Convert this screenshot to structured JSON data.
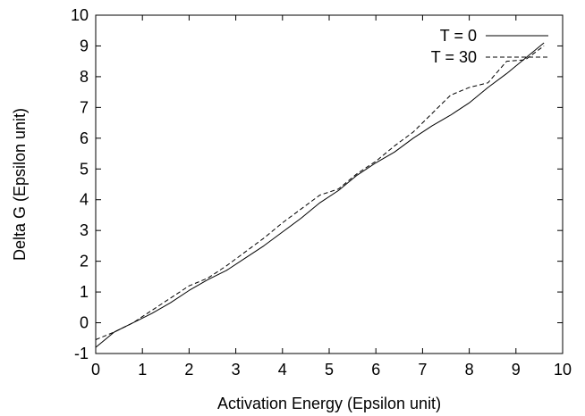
{
  "chart_data": {
    "type": "line",
    "xlabel": "Activation Energy (Epsilon unit)",
    "ylabel": "Delta G (Epsilon unit)",
    "xlim": [
      0,
      10
    ],
    "ylim": [
      -1,
      10
    ],
    "xticks": [
      0,
      1,
      2,
      3,
      4,
      5,
      6,
      7,
      8,
      9,
      10
    ],
    "yticks": [
      -1,
      0,
      1,
      2,
      3,
      4,
      5,
      6,
      7,
      8,
      9,
      10
    ],
    "grid": false,
    "legend_position": "top-right",
    "series": [
      {
        "name": "T = 0",
        "line_style": "solid",
        "color": "#000000",
        "x": [
          0.0,
          0.4,
          0.8,
          1.2,
          1.6,
          2.0,
          2.4,
          2.8,
          3.2,
          3.6,
          4.0,
          4.4,
          4.8,
          5.2,
          5.6,
          6.0,
          6.4,
          6.8,
          7.2,
          7.6,
          8.0,
          8.4,
          8.8,
          9.2,
          9.6
        ],
        "y": [
          -0.8,
          -0.3,
          0.0,
          0.3,
          0.65,
          1.05,
          1.4,
          1.7,
          2.1,
          2.5,
          2.95,
          3.4,
          3.9,
          4.3,
          4.8,
          5.2,
          5.55,
          6.0,
          6.4,
          6.75,
          7.15,
          7.65,
          8.1,
          8.6,
          9.1
        ]
      },
      {
        "name": "T = 30",
        "line_style": "dashed",
        "color": "#000000",
        "x": [
          0.0,
          0.4,
          0.8,
          1.2,
          1.6,
          2.0,
          2.4,
          2.8,
          3.2,
          3.6,
          4.0,
          4.4,
          4.8,
          5.2,
          5.6,
          6.0,
          6.4,
          6.8,
          7.2,
          7.6,
          8.0,
          8.4,
          8.8,
          9.2,
          9.6
        ],
        "y": [
          -0.55,
          -0.3,
          0.0,
          0.4,
          0.8,
          1.2,
          1.45,
          1.85,
          2.3,
          2.75,
          3.25,
          3.7,
          4.15,
          4.35,
          4.85,
          5.25,
          5.75,
          6.2,
          6.8,
          7.4,
          7.65,
          7.8,
          8.5,
          8.55,
          9.0
        ]
      }
    ]
  }
}
